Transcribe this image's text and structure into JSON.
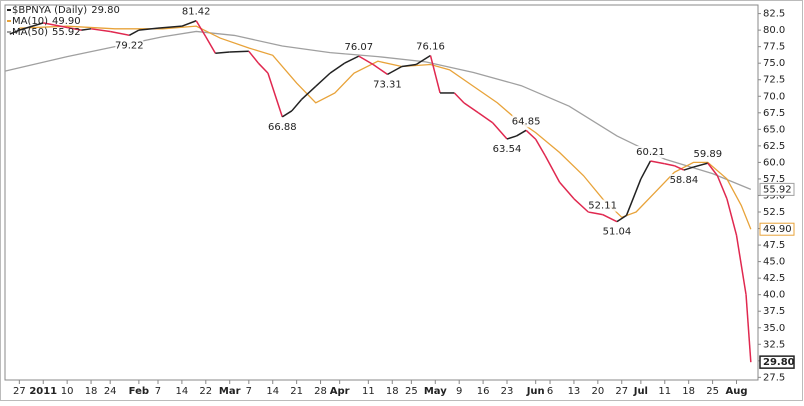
{
  "chart_data": {
    "type": "line",
    "xlim": [
      -3,
      154.5
    ],
    "ylim": [
      27.1,
      83.8
    ],
    "yticks": [
      27.5,
      {
        "value": 30,
        "label": "30.0"
      },
      32.5,
      {
        "value": 35,
        "label": "35.0"
      },
      37.5,
      {
        "value": 40,
        "label": "40.0"
      },
      42.5,
      {
        "value": 45,
        "label": "45.0"
      },
      47.5,
      {
        "value": 50,
        "label": "50.0"
      },
      52.5,
      {
        "value": 55,
        "label": "55.0"
      },
      57.5,
      {
        "value": 60,
        "label": "60.0"
      },
      62.5,
      {
        "value": 65,
        "label": "65.0"
      },
      67.5,
      {
        "value": 70,
        "label": "70.0"
      },
      72.5,
      {
        "value": 75,
        "label": "75.0"
      },
      77.5,
      {
        "value": 80,
        "label": "80.0"
      },
      82.5
    ],
    "xticks": [
      {
        "value": 0,
        "label": "27"
      },
      {
        "value": 5,
        "label": "2011"
      },
      {
        "value": 10,
        "label": "10"
      },
      {
        "value": 15,
        "label": "18"
      },
      {
        "value": 19,
        "label": "24"
      },
      {
        "value": 25,
        "label": "Feb"
      },
      {
        "value": 29,
        "label": "7"
      },
      {
        "value": 34,
        "label": "14"
      },
      {
        "value": 39,
        "label": "22"
      },
      {
        "value": 44,
        "label": "Mar"
      },
      {
        "value": 48,
        "label": "7"
      },
      {
        "value": 53,
        "label": "14"
      },
      {
        "value": 58,
        "label": "21"
      },
      {
        "value": 63,
        "label": "28"
      },
      {
        "value": 67,
        "label": "Apr"
      },
      {
        "value": 73,
        "label": "11"
      },
      {
        "value": 78,
        "label": "18"
      },
      {
        "value": 82,
        "label": "25"
      },
      {
        "value": 87,
        "label": "May"
      },
      {
        "value": 92,
        "label": "9"
      },
      {
        "value": 97,
        "label": "16"
      },
      {
        "value": 102,
        "label": "23"
      },
      {
        "value": 108,
        "label": "Jun"
      },
      {
        "value": 111,
        "label": "6"
      },
      {
        "value": 116,
        "label": "13"
      },
      {
        "value": 121,
        "label": "20"
      },
      {
        "value": 126,
        "label": "27"
      },
      {
        "value": 130,
        "label": "Jul"
      },
      {
        "value": 135,
        "label": "11"
      },
      {
        "value": 140,
        "label": "18"
      },
      {
        "value": 145,
        "label": "25"
      },
      {
        "value": 150,
        "label": "Aug"
      }
    ],
    "series": [
      {
        "name": "$BPNYA (Daily)",
        "legend_value": "29.80",
        "color": "#222222",
        "down_color": "#e0284f",
        "x": [
          -2,
          0,
          5,
          10,
          13,
          15,
          19,
          23,
          25,
          29,
          34,
          37,
          39,
          41,
          44,
          48,
          50,
          52,
          55,
          57,
          59,
          62,
          65,
          68,
          71,
          74,
          77,
          80,
          83,
          86,
          88,
          91,
          93,
          96,
          99,
          102,
          104,
          106,
          108,
          110,
          113,
          116,
          119,
          122,
          125,
          127,
          130,
          132,
          135,
          137,
          139,
          141,
          144,
          146,
          148,
          150,
          152,
          153
        ],
        "values": [
          79.4,
          80.0,
          81.1,
          80.4,
          80.0,
          80.2,
          79.8,
          79.22,
          80.0,
          80.3,
          80.6,
          81.42,
          79.0,
          76.5,
          76.7,
          76.8,
          75.0,
          73.5,
          66.88,
          67.8,
          69.5,
          71.5,
          73.5,
          75.0,
          76.07,
          74.8,
          73.31,
          74.5,
          74.8,
          76.16,
          70.5,
          70.5,
          69.0,
          67.5,
          66.0,
          63.54,
          64.0,
          64.85,
          63.5,
          61.0,
          57.0,
          54.5,
          52.5,
          52.11,
          51.04,
          52.0,
          57.5,
          60.21,
          59.8,
          59.5,
          58.84,
          59.3,
          59.89,
          58.0,
          54.5,
          49.0,
          40.0,
          29.8
        ]
      },
      {
        "name": "MA(10)",
        "legend_value": "49.90",
        "color": "#e8a33a",
        "x": [
          0,
          10,
          20,
          30,
          37,
          42,
          48,
          53,
          58,
          62,
          66,
          70,
          75,
          80,
          86,
          90,
          95,
          100,
          104,
          108,
          113,
          118,
          122,
          126,
          129,
          133,
          137,
          141,
          144,
          148,
          151,
          153
        ],
        "values": [
          80.3,
          80.6,
          80.2,
          80.2,
          80.6,
          78.8,
          77.3,
          76.2,
          72.0,
          69.0,
          70.5,
          73.5,
          75.3,
          74.5,
          74.8,
          74.0,
          71.5,
          69.0,
          66.5,
          64.5,
          61.5,
          58.0,
          54.5,
          51.7,
          52.5,
          55.5,
          58.5,
          60.0,
          60.0,
          57.5,
          53.5,
          49.9
        ]
      },
      {
        "name": "MA(50)",
        "legend_value": "55.92",
        "color": "#a0a0a0",
        "x": [
          -3,
          10,
          20,
          30,
          37,
          45,
          55,
          65,
          75,
          85,
          95,
          105,
          115,
          125,
          135,
          145,
          153
        ],
        "values": [
          73.8,
          76.0,
          77.5,
          79.0,
          79.8,
          79.2,
          77.6,
          76.6,
          76.0,
          75.2,
          73.6,
          71.6,
          68.5,
          64.0,
          60.5,
          58.3,
          55.92
        ]
      }
    ],
    "annotations": [
      {
        "x": 23,
        "y": 79.22,
        "position": "below"
      },
      {
        "x": 37,
        "y": 81.42,
        "position": "above"
      },
      {
        "x": 55,
        "y": 66.88,
        "position": "below"
      },
      {
        "x": 71,
        "y": 76.07,
        "position": "above"
      },
      {
        "x": 77,
        "y": 73.31,
        "position": "below"
      },
      {
        "x": 86,
        "y": 76.16,
        "position": "above"
      },
      {
        "x": 102,
        "y": 63.54,
        "position": "below"
      },
      {
        "x": 106,
        "y": 64.85,
        "position": "above"
      },
      {
        "x": 122,
        "y": 52.11,
        "position": "above"
      },
      {
        "x": 125,
        "y": 51.04,
        "position": "below"
      },
      {
        "x": 132,
        "y": 60.21,
        "position": "above"
      },
      {
        "x": 139,
        "y": 58.84,
        "position": "below"
      },
      {
        "x": 144,
        "y": 59.89,
        "position": "above"
      }
    ]
  }
}
